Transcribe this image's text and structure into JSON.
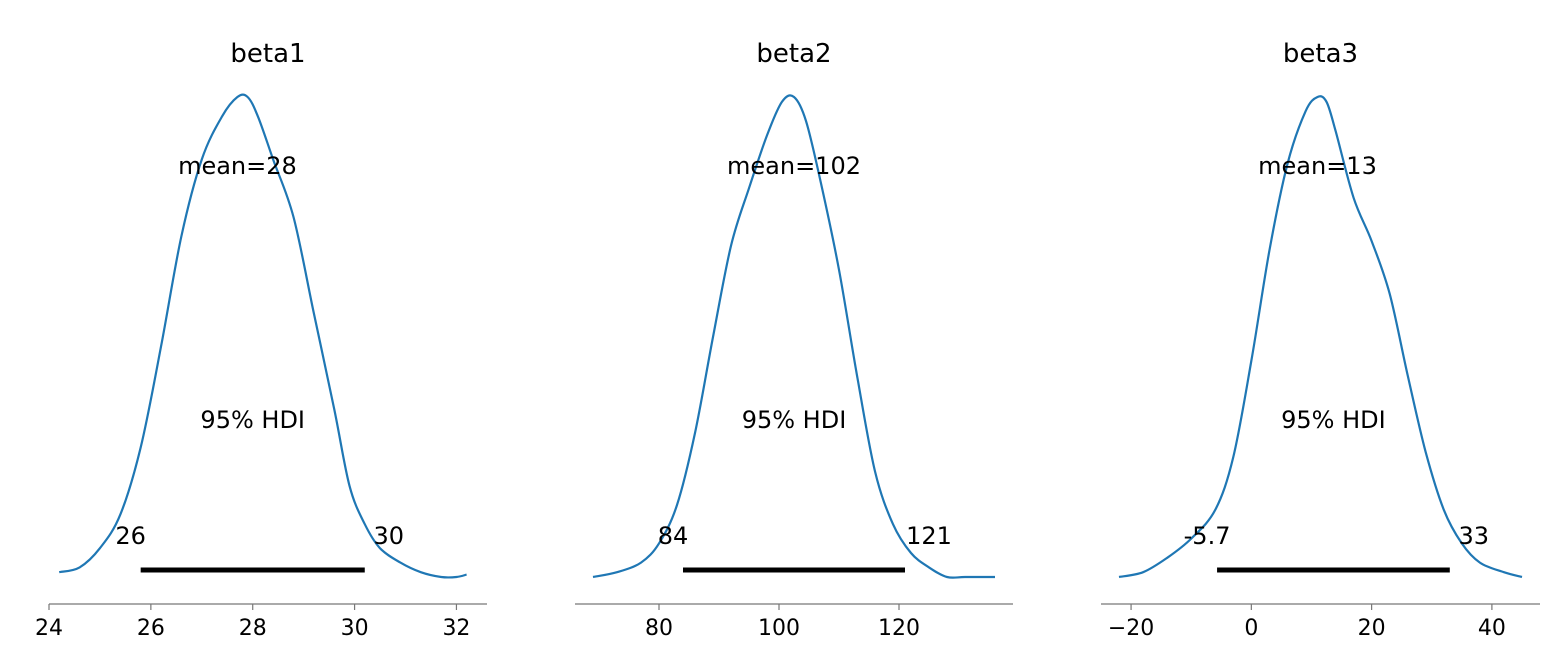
{
  "chart_data": [
    {
      "type": "area",
      "title": "beta1",
      "mean_label": "mean=28",
      "hdi_label": "95% HDI",
      "hdi_low": 25.8,
      "hdi_high": 30.2,
      "hdi_low_label": "26",
      "hdi_high_label": "30",
      "xlim": [
        24,
        32.6
      ],
      "xticks": [
        24,
        26,
        28,
        30,
        32
      ],
      "xtick_labels": [
        "24",
        "26",
        "28",
        "30",
        "32"
      ],
      "x": [
        24.2,
        24.6,
        25.0,
        25.4,
        25.8,
        26.2,
        26.6,
        27.0,
        27.4,
        27.7,
        27.9,
        28.1,
        28.4,
        28.8,
        29.2,
        29.6,
        29.9,
        30.2,
        30.5,
        30.9,
        31.3,
        31.7,
        32.0,
        32.2
      ],
      "y": [
        0.01,
        0.02,
        0.06,
        0.13,
        0.27,
        0.48,
        0.71,
        0.87,
        0.96,
        1.0,
        1.0,
        0.96,
        0.87,
        0.75,
        0.55,
        0.35,
        0.19,
        0.11,
        0.06,
        0.03,
        0.01,
        0.0,
        0.0,
        0.005
      ],
      "color": "#1f77b4"
    },
    {
      "type": "area",
      "title": "beta2",
      "mean_label": "mean=102",
      "hdi_label": "95% HDI",
      "hdi_low": 84,
      "hdi_high": 121,
      "hdi_low_label": "84",
      "hdi_high_label": "121",
      "xlim": [
        66,
        139
      ],
      "xticks": [
        80,
        100,
        120
      ],
      "xtick_labels": [
        "80",
        "100",
        "120"
      ],
      "x": [
        69,
        73,
        77,
        80,
        83,
        86,
        89,
        92,
        95,
        98,
        100.5,
        102.5,
        104.5,
        107,
        110,
        113,
        116,
        119,
        122,
        125,
        128,
        131,
        136
      ],
      "y": [
        0.0,
        0.01,
        0.03,
        0.07,
        0.15,
        0.3,
        0.5,
        0.69,
        0.81,
        0.92,
        0.99,
        1.0,
        0.95,
        0.82,
        0.64,
        0.42,
        0.22,
        0.11,
        0.05,
        0.02,
        0.0,
        0.0,
        0.0
      ],
      "color": "#1f77b4"
    },
    {
      "type": "area",
      "title": "beta3",
      "mean_label": "mean=13",
      "hdi_label": "95% HDI",
      "hdi_low": -5.7,
      "hdi_high": 33,
      "hdi_low_label": "-5.7",
      "hdi_high_label": "33",
      "xlim": [
        -25,
        48
      ],
      "xticks": [
        -20,
        0,
        20,
        40
      ],
      "xtick_labels": [
        "−20",
        "0",
        "20",
        "40"
      ],
      "x": [
        -22,
        -18,
        -14,
        -10,
        -6,
        -3,
        0,
        3,
        6,
        9,
        11,
        12.5,
        14,
        17,
        20,
        23,
        26,
        29,
        32,
        35,
        38,
        42,
        45
      ],
      "y": [
        0.0,
        0.01,
        0.04,
        0.08,
        0.14,
        0.25,
        0.45,
        0.68,
        0.86,
        0.97,
        1.0,
        0.99,
        0.93,
        0.79,
        0.7,
        0.59,
        0.42,
        0.26,
        0.14,
        0.07,
        0.03,
        0.01,
        0.0
      ],
      "color": "#1f77b4"
    }
  ]
}
